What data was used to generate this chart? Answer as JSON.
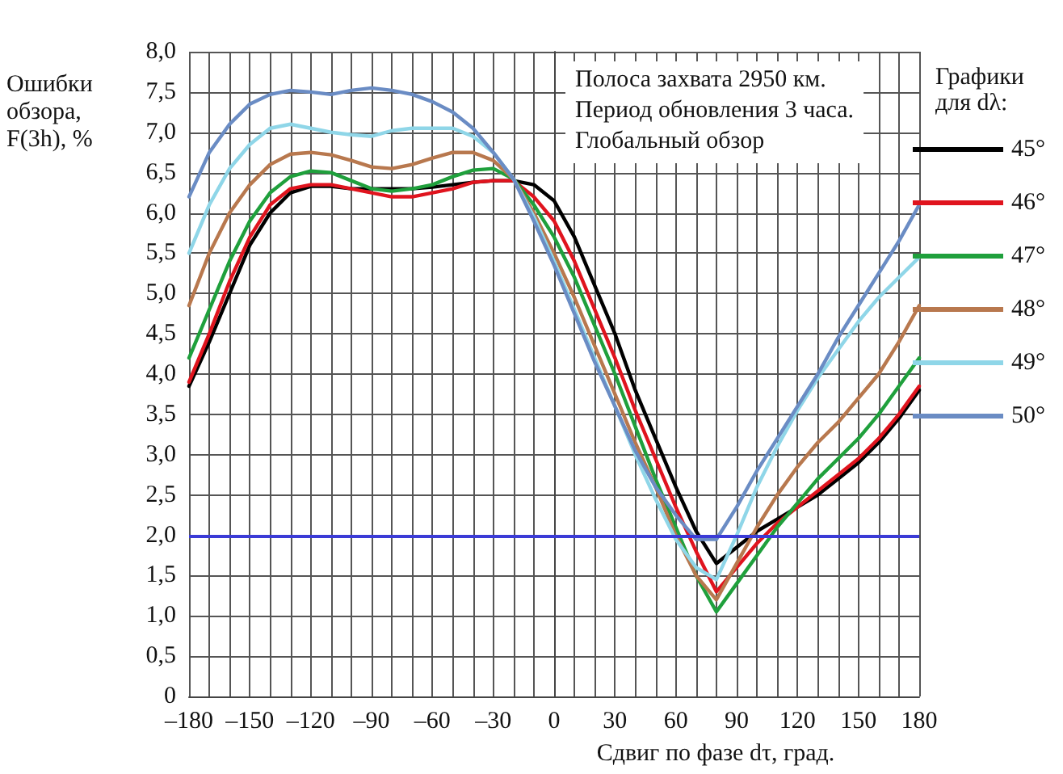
{
  "chart_data": {
    "type": "line",
    "xlabel": "Сдвиг по фазе dτ, град.",
    "ylabel": "Ошибки обзора, F(3h), %",
    "legend_title": "Графики для dλ:",
    "annotations": [
      "Полоса захвата 2950 км.\nПериод обновления 3 часа.\nГлобальный обзор"
    ],
    "x": [
      -180,
      -170,
      -160,
      -150,
      -140,
      -130,
      -120,
      -110,
      -100,
      -90,
      -80,
      -70,
      -60,
      -50,
      -40,
      -30,
      -20,
      -10,
      0,
      10,
      20,
      30,
      40,
      50,
      60,
      70,
      80,
      90,
      100,
      110,
      120,
      130,
      140,
      150,
      160,
      170,
      180
    ],
    "series": [
      {
        "name": "45°",
        "color": "#000000",
        "values": [
          3.85,
          4.4,
          5.0,
          5.6,
          6.0,
          6.25,
          6.33,
          6.33,
          6.3,
          6.3,
          6.3,
          6.3,
          6.32,
          6.35,
          6.38,
          6.4,
          6.4,
          6.35,
          6.15,
          5.7,
          5.1,
          4.5,
          3.8,
          3.2,
          2.6,
          2.05,
          1.65,
          1.85,
          2.05,
          2.2,
          2.35,
          2.5,
          2.7,
          2.9,
          3.15,
          3.45,
          3.8
        ]
      },
      {
        "name": "46°",
        "color": "#e0141e",
        "values": [
          3.9,
          4.5,
          5.15,
          5.7,
          6.1,
          6.3,
          6.35,
          6.35,
          6.3,
          6.25,
          6.2,
          6.2,
          6.25,
          6.3,
          6.38,
          6.4,
          6.4,
          6.2,
          5.9,
          5.4,
          4.8,
          4.2,
          3.55,
          2.95,
          2.35,
          1.8,
          1.3,
          1.6,
          1.9,
          2.15,
          2.35,
          2.55,
          2.75,
          2.95,
          3.2,
          3.5,
          3.85
        ]
      },
      {
        "name": "47°",
        "color": "#1fa03c",
        "values": [
          4.2,
          4.8,
          5.4,
          5.9,
          6.25,
          6.45,
          6.52,
          6.5,
          6.4,
          6.3,
          6.27,
          6.3,
          6.35,
          6.45,
          6.53,
          6.55,
          6.42,
          6.1,
          5.7,
          5.2,
          4.6,
          4.0,
          3.35,
          2.7,
          2.1,
          1.5,
          1.05,
          1.4,
          1.75,
          2.1,
          2.4,
          2.7,
          2.95,
          3.2,
          3.5,
          3.85,
          4.2
        ]
      },
      {
        "name": "48°",
        "color": "#b8784e",
        "values": [
          4.85,
          5.5,
          6.0,
          6.35,
          6.6,
          6.73,
          6.75,
          6.72,
          6.65,
          6.57,
          6.55,
          6.6,
          6.68,
          6.75,
          6.75,
          6.65,
          6.42,
          6.0,
          5.5,
          4.95,
          4.35,
          3.75,
          3.15,
          2.6,
          2.0,
          1.5,
          1.2,
          1.65,
          2.1,
          2.5,
          2.85,
          3.15,
          3.4,
          3.7,
          4.0,
          4.4,
          4.85
        ]
      },
      {
        "name": "49°",
        "color": "#8fd6e8",
        "values": [
          5.5,
          6.1,
          6.55,
          6.85,
          7.05,
          7.1,
          7.05,
          7.0,
          6.97,
          6.95,
          7.02,
          7.05,
          7.05,
          7.05,
          6.95,
          6.75,
          6.42,
          5.95,
          5.4,
          4.8,
          4.2,
          3.6,
          3.0,
          2.45,
          1.95,
          1.6,
          1.45,
          2.0,
          2.6,
          3.1,
          3.55,
          3.95,
          4.3,
          4.65,
          4.95,
          5.2,
          5.45
        ]
      },
      {
        "name": "50°",
        "color": "#6a8cc4",
        "values": [
          6.2,
          6.75,
          7.1,
          7.35,
          7.47,
          7.52,
          7.5,
          7.47,
          7.52,
          7.55,
          7.52,
          7.47,
          7.38,
          7.25,
          7.05,
          6.75,
          6.42,
          5.9,
          5.35,
          4.75,
          4.15,
          3.6,
          3.05,
          2.6,
          2.25,
          1.95,
          1.95,
          2.35,
          2.8,
          3.2,
          3.6,
          4.0,
          4.45,
          4.85,
          5.25,
          5.65,
          6.1
        ]
      }
    ],
    "ref_lines": [
      {
        "axis": "y",
        "value": 2.0,
        "color": "#3b3bd6"
      }
    ],
    "xlim": [
      -180,
      180
    ],
    "xticks": [
      {
        "value": -180,
        "label": "–180"
      },
      {
        "value": -150,
        "label": "–150"
      },
      {
        "value": -120,
        "label": "–120"
      },
      {
        "value": -90,
        "label": "–90"
      },
      {
        "value": -60,
        "label": "–60"
      },
      {
        "value": -30,
        "label": "–30"
      },
      0,
      30,
      60,
      90,
      120,
      150,
      180
    ],
    "ylim": [
      0,
      8
    ],
    "yticks": [
      0,
      {
        "value": 0.5,
        "label": "0,5"
      },
      {
        "value": 1,
        "label": "1,0"
      },
      {
        "value": 1.5,
        "label": "1,5"
      },
      {
        "value": 2,
        "label": "2,0"
      },
      {
        "value": 2.5,
        "label": "2,5"
      },
      {
        "value": 3,
        "label": "3,0"
      },
      {
        "value": 3.5,
        "label": "3,5"
      },
      {
        "value": 4,
        "label": "4,0"
      },
      {
        "value": 4.5,
        "label": "4,5"
      },
      {
        "value": 5,
        "label": "5,0"
      },
      {
        "value": 5.5,
        "label": "5,5"
      },
      {
        "value": 6,
        "label": "6,0"
      },
      {
        "value": 6.5,
        "label": "6,5"
      },
      {
        "value": 7,
        "label": "7,0"
      },
      {
        "value": 7.5,
        "label": "7,5"
      },
      {
        "value": 8,
        "label": "8,0"
      }
    ],
    "grid": true,
    "legend": "right",
    "marker": "none",
    "line_style": "solid"
  }
}
